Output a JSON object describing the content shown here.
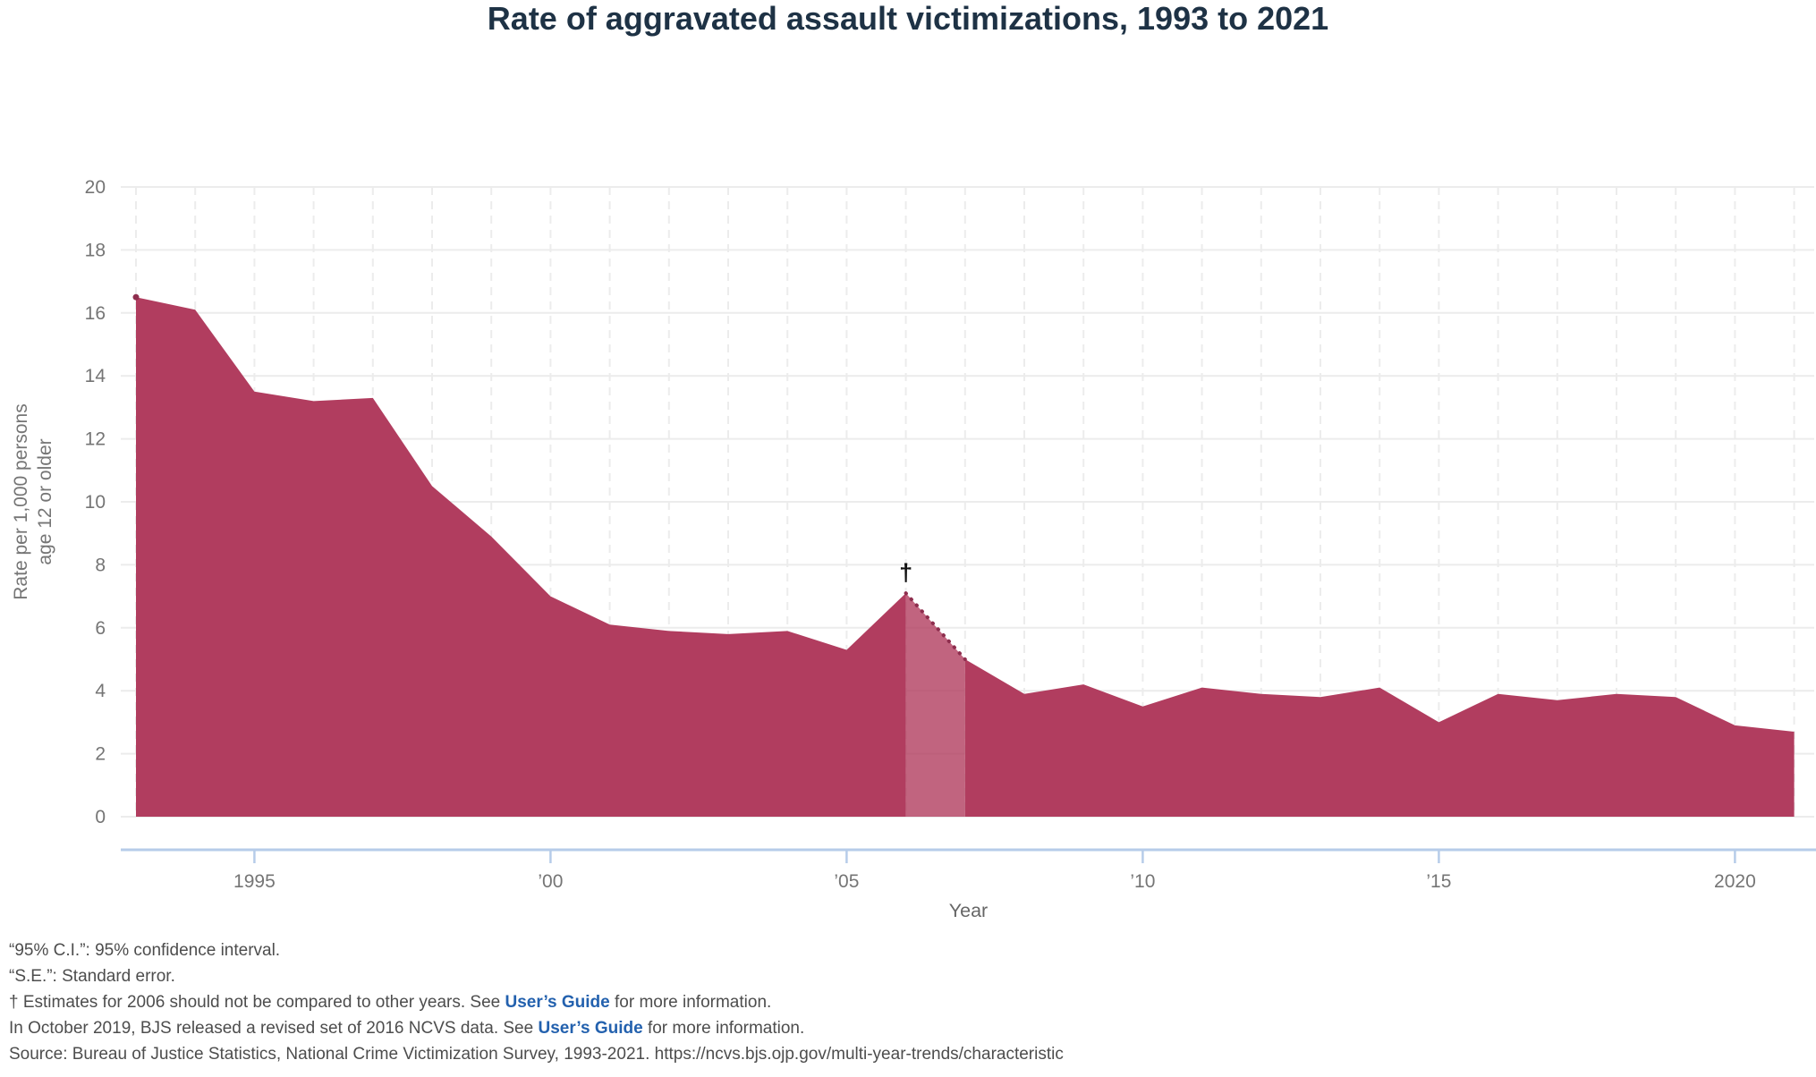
{
  "chart_data": {
    "type": "area",
    "title": "Rate of aggravated assault victimizations, 1993 to 2021",
    "xlabel": "Year",
    "ylabel_lines": [
      "Rate per 1,000 persons",
      "age 12 or older"
    ],
    "x": [
      1993,
      1994,
      1995,
      1996,
      1997,
      1998,
      1999,
      2000,
      2001,
      2002,
      2003,
      2004,
      2005,
      2006,
      2007,
      2008,
      2009,
      2010,
      2011,
      2012,
      2013,
      2014,
      2015,
      2016,
      2017,
      2018,
      2019,
      2020,
      2021
    ],
    "values": [
      16.5,
      16.1,
      13.5,
      13.2,
      13.3,
      10.5,
      8.9,
      7.0,
      6.1,
      5.9,
      5.8,
      5.9,
      5.3,
      7.1,
      5.0,
      3.9,
      4.2,
      3.5,
      4.1,
      3.9,
      3.8,
      4.1,
      3.0,
      3.9,
      3.7,
      3.9,
      3.8,
      2.9,
      2.7
    ],
    "ylim": [
      0,
      20
    ],
    "ytick_step": 2,
    "xticks": [
      1995,
      2000,
      2005,
      2010,
      2015,
      2020
    ],
    "xtick_labels": [
      "1995",
      "’00",
      "’05",
      "’10",
      "’15",
      "2020"
    ],
    "grid": true,
    "legend": "none",
    "annotation": {
      "symbol": "†",
      "year": 2006,
      "value": 7.1,
      "meaning": "Estimates for 2006 should not be compared to other years"
    },
    "highlight_band": {
      "from_year": 2006,
      "to_year": 2007,
      "edge_style": "dotted"
    },
    "colors": {
      "area": "#b13d5f",
      "band_edge_dotted": "#8e2e4e",
      "axis_line": "#b6cce9",
      "grid_line": "#ececec",
      "tick_text": "#757575",
      "axis_title_text": "#666666",
      "title_text": "#1e3245",
      "footnote_text": "#4d4d4d",
      "link": "#2361ae",
      "dagger": "#111111"
    }
  },
  "footnotes": {
    "ci": "“95% C.I.”: 95% confidence interval.",
    "se": "“S.E.”: Standard error.",
    "dagger_pre": "† Estimates for 2006 should not be compared to other years. See ",
    "guide_link_label": "User’s Guide",
    "dagger_post": " for more information.",
    "revision_pre": "In October 2019, BJS released a revised set of 2016 NCVS data. See ",
    "revision_post": " for more information.",
    "source": "Source: Bureau of Justice Statistics, National Crime Victimization Survey, 1993-2021. https://ncvs.bjs.ojp.gov/multi-year-trends/characteristic"
  }
}
